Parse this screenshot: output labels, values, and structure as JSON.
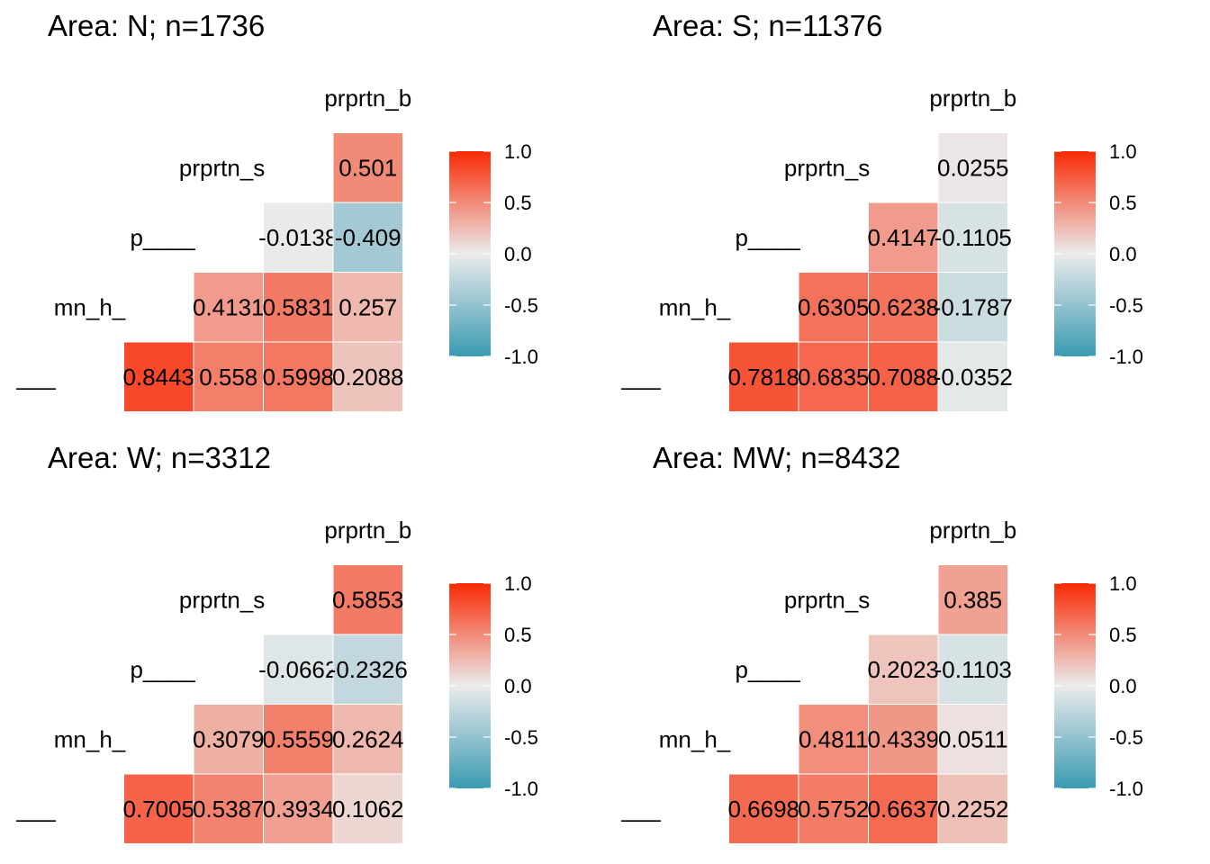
{
  "colors": {
    "low": "#3A9AB2",
    "mid": "#EBEBEB",
    "high": "#F92A05"
  },
  "legend": {
    "ticks": [
      "1.0",
      "0.5",
      "0.0",
      "-0.5",
      "-1.0"
    ]
  },
  "chart_data": [
    {
      "type": "heatmap",
      "title": "Area: N; n=1736",
      "variables": [
        "___",
        "mn_h_",
        "p____",
        "prprtn_s",
        "prprtn_b"
      ],
      "cells": [
        {
          "row": "___",
          "col": "mn_h_",
          "value": 0.8443
        },
        {
          "row": "___",
          "col": "p____",
          "value": 0.558
        },
        {
          "row": "___",
          "col": "prprtn_s",
          "value": 0.5998
        },
        {
          "row": "___",
          "col": "prprtn_b",
          "value": 0.2088
        },
        {
          "row": "mn_h_",
          "col": "p____",
          "value": 0.4131
        },
        {
          "row": "mn_h_",
          "col": "prprtn_s",
          "value": 0.5831
        },
        {
          "row": "mn_h_",
          "col": "prprtn_b",
          "value": 0.257
        },
        {
          "row": "p____",
          "col": "prprtn_s",
          "value": -0.0138
        },
        {
          "row": "p____",
          "col": "prprtn_b",
          "value": -0.409
        },
        {
          "row": "prprtn_s",
          "col": "prprtn_b",
          "value": 0.501
        }
      ],
      "labels": [
        "0.8443",
        "0.558",
        "0.5998",
        "0.2088",
        "0.4131",
        "0.5831",
        "0.257",
        "-0.0138",
        "-0.409",
        "0.501"
      ],
      "legend_range": [
        -1,
        1
      ]
    },
    {
      "type": "heatmap",
      "title": "Area: S; n=11376",
      "variables": [
        "___",
        "mn_h_",
        "p____",
        "prprtn_s",
        "prprtn_b"
      ],
      "cells": [
        {
          "row": "___",
          "col": "mn_h_",
          "value": 0.7818
        },
        {
          "row": "___",
          "col": "p____",
          "value": 0.6835
        },
        {
          "row": "___",
          "col": "prprtn_s",
          "value": 0.7088
        },
        {
          "row": "___",
          "col": "prprtn_b",
          "value": -0.0352
        },
        {
          "row": "mn_h_",
          "col": "p____",
          "value": 0.6305
        },
        {
          "row": "mn_h_",
          "col": "prprtn_s",
          "value": 0.6238
        },
        {
          "row": "mn_h_",
          "col": "prprtn_b",
          "value": -0.1787
        },
        {
          "row": "p____",
          "col": "prprtn_s",
          "value": 0.4147
        },
        {
          "row": "p____",
          "col": "prprtn_b",
          "value": -0.1105
        },
        {
          "row": "prprtn_s",
          "col": "prprtn_b",
          "value": 0.0255
        }
      ],
      "labels": [
        "0.7818",
        "0.6835",
        "0.7088",
        "-0.0352",
        "0.6305",
        "0.6238",
        "-0.1787",
        "0.4147",
        "-0.1105",
        "0.0255"
      ],
      "legend_range": [
        -1,
        1
      ]
    },
    {
      "type": "heatmap",
      "title": "Area: W; n=3312",
      "variables": [
        "___",
        "mn_h_",
        "p____",
        "prprtn_s",
        "prprtn_b"
      ],
      "cells": [
        {
          "row": "___",
          "col": "mn_h_",
          "value": 0.7005
        },
        {
          "row": "___",
          "col": "p____",
          "value": 0.5387
        },
        {
          "row": "___",
          "col": "prprtn_s",
          "value": 0.3934
        },
        {
          "row": "___",
          "col": "prprtn_b",
          "value": 0.1062
        },
        {
          "row": "mn_h_",
          "col": "p____",
          "value": 0.3079
        },
        {
          "row": "mn_h_",
          "col": "prprtn_s",
          "value": 0.5559
        },
        {
          "row": "mn_h_",
          "col": "prprtn_b",
          "value": 0.2624
        },
        {
          "row": "p____",
          "col": "prprtn_s",
          "value": -0.0662
        },
        {
          "row": "p____",
          "col": "prprtn_b",
          "value": -0.2326
        },
        {
          "row": "prprtn_s",
          "col": "prprtn_b",
          "value": 0.5853
        }
      ],
      "labels": [
        "0.7005",
        "0.5387",
        "0.3934",
        "0.1062",
        "0.3079",
        "0.5559",
        "0.2624",
        "-0.0662",
        "-0.2326",
        "0.5853"
      ],
      "legend_range": [
        -1,
        1
      ]
    },
    {
      "type": "heatmap",
      "title": "Area: MW; n=8432",
      "variables": [
        "___",
        "mn_h_",
        "p____",
        "prprtn_s",
        "prprtn_b"
      ],
      "cells": [
        {
          "row": "___",
          "col": "mn_h_",
          "value": 0.6698
        },
        {
          "row": "___",
          "col": "p____",
          "value": 0.5752
        },
        {
          "row": "___",
          "col": "prprtn_s",
          "value": 0.6637
        },
        {
          "row": "___",
          "col": "prprtn_b",
          "value": 0.2252
        },
        {
          "row": "mn_h_",
          "col": "p____",
          "value": 0.4811
        },
        {
          "row": "mn_h_",
          "col": "prprtn_s",
          "value": 0.4339
        },
        {
          "row": "mn_h_",
          "col": "prprtn_b",
          "value": 0.0511
        },
        {
          "row": "p____",
          "col": "prprtn_s",
          "value": 0.2023
        },
        {
          "row": "p____",
          "col": "prprtn_b",
          "value": -0.1103
        },
        {
          "row": "prprtn_s",
          "col": "prprtn_b",
          "value": 0.385
        }
      ],
      "labels": [
        "0.6698",
        "0.5752",
        "0.6637",
        "0.2252",
        "0.4811",
        "0.4339",
        "0.0511",
        "0.2023",
        "-0.1103",
        "0.385"
      ],
      "legend_range": [
        -1,
        1
      ]
    }
  ]
}
